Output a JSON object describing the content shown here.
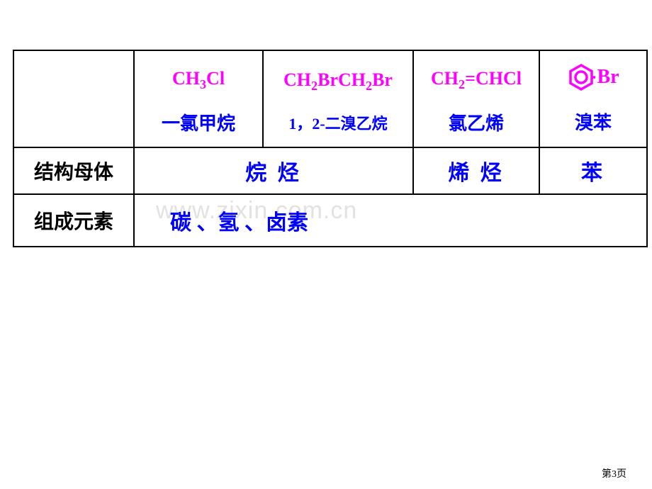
{
  "table": {
    "row1": {
      "formulas": {
        "c1_html": "CH<span class=\"sub\">3</span>Cl",
        "c2_html": "CH<span class=\"sub\">2</span>BrCH<span class=\"sub\">2</span>Br",
        "c3_html": "CH<span class=\"sub\">2</span>=CHCl",
        "c4_br": "Br"
      },
      "names": {
        "c1": "一氯甲烷",
        "c2": "1，2-二溴乙烷",
        "c3": "氯乙烯",
        "c4": "溴苯"
      }
    },
    "row2": {
      "label": "结构母体",
      "c12": "烷 烃",
      "c3": "烯 烃",
      "c4": "苯"
    },
    "row3": {
      "label": "组成元素",
      "c1234": "碳 、氢  、卤素"
    }
  },
  "watermark": "www.zixin.com.cn",
  "pagenum": "第3页",
  "colors": {
    "formula": "#ff00ff",
    "blue": "#0000ff",
    "black": "#000000",
    "border": "#000000",
    "watermark": "#e2e2e2",
    "background": "#ffffff"
  },
  "benzene": {
    "outer_stroke": "#ff00ff",
    "inner_stroke": "#ff00ff",
    "stroke_width": 3
  }
}
